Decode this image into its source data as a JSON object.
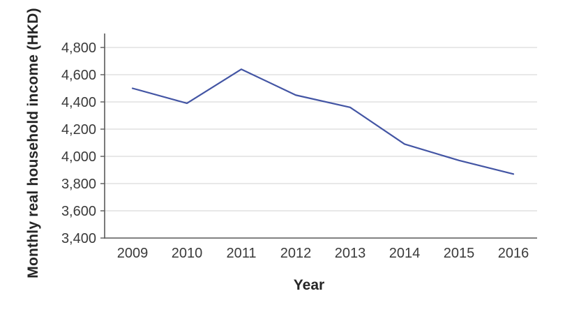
{
  "chart_data": {
    "type": "line",
    "title": "",
    "xlabel": "Year",
    "ylabel": "Monthly real household income (HKD)",
    "x": [
      "2009",
      "2010",
      "2011",
      "2012",
      "2013",
      "2014",
      "2015",
      "2016"
    ],
    "values": [
      4500,
      4390,
      4640,
      4450,
      4360,
      4090,
      3970,
      3870
    ],
    "ylim": [
      3400,
      4800
    ],
    "ytick_step": 200,
    "ytick_labels": [
      "3,400",
      "3,600",
      "3,800",
      "4,000",
      "4,200",
      "4,400",
      "4,600",
      "4,800"
    ],
    "xtick_labels": [
      "2009",
      "2010",
      "2011",
      "2012",
      "2013",
      "2014",
      "2015",
      "2016"
    ],
    "grid": "horizontal",
    "legend": "none",
    "line_color": "#4355a4",
    "gridline_color": "#d9d9d9",
    "axis_color": "#595959",
    "tick_label_color": "#3a3a3a",
    "axis_title_color": "#262626"
  }
}
